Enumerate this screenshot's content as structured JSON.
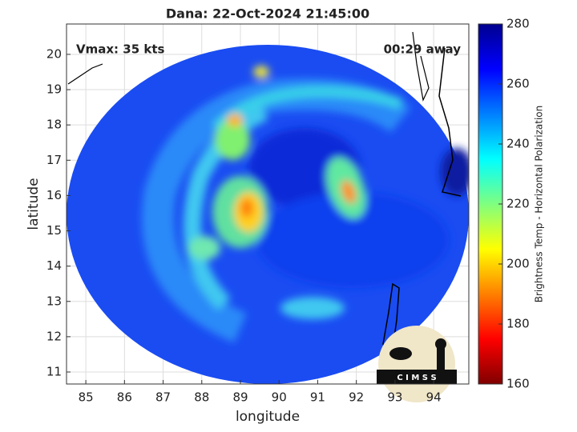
{
  "chart_data": {
    "type": "image",
    "title": "Dana: 22-Oct-2024 21:45:00",
    "annotations": [
      "Vmax: 35 kts",
      "00:29 away"
    ],
    "xlabel": "longitude",
    "ylabel": "latitude",
    "xlim": [
      84.5,
      94.91
    ],
    "ylim": [
      10.66,
      20.86
    ],
    "xticks": [
      85,
      86,
      87,
      88,
      89,
      90,
      91,
      92,
      93,
      94
    ],
    "yticks": [
      11,
      12,
      13,
      14,
      15,
      16,
      17,
      18,
      19,
      20
    ],
    "grid": true,
    "colormap": "jet",
    "colormap_reversed": true,
    "clim": [
      160,
      280
    ],
    "cticks": [
      160,
      180,
      200,
      220,
      240,
      260,
      280
    ],
    "colorbar_label": "Brightness Temp - Horizontal Polarization",
    "logo": "C I M S S"
  }
}
